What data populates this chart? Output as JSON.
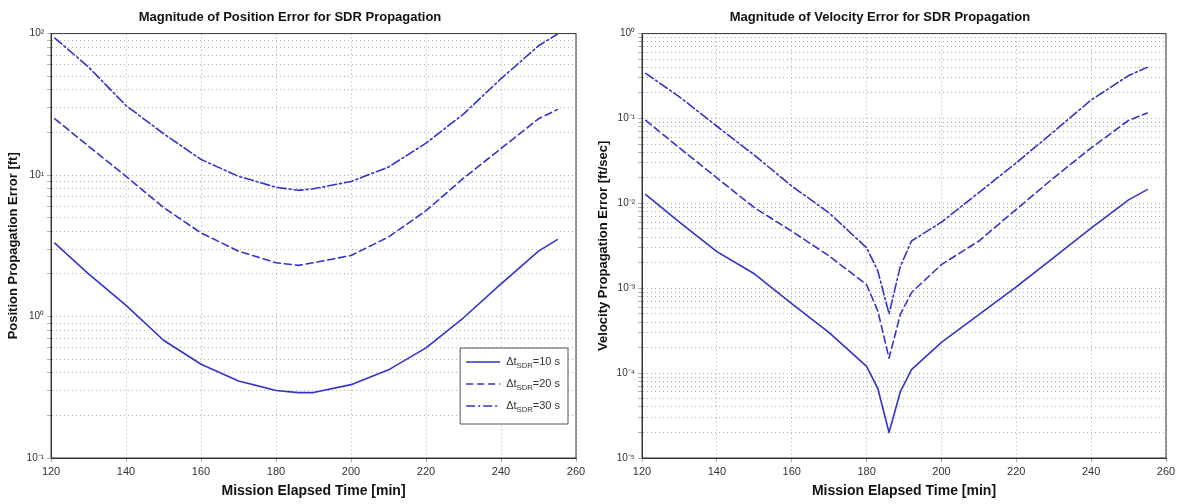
{
  "chart_data": [
    {
      "type": "line",
      "title": "Magnitude of Position Error for SDR Propagation",
      "xlabel": "Mission Elapsed Time [min]",
      "ylabel": "Position Propagation Error [ft]",
      "x": [
        121,
        130,
        140,
        150,
        160,
        170,
        180,
        186,
        190,
        200,
        210,
        220,
        230,
        240,
        250,
        255
      ],
      "series": [
        {
          "name": "Δt$_{SDR}$=10 s",
          "color": "#3333cc",
          "line_style": "solid",
          "values": [
            3.3,
            2.0,
            1.2,
            0.68,
            0.46,
            0.35,
            0.3,
            0.29,
            0.29,
            0.33,
            0.42,
            0.6,
            0.98,
            1.7,
            2.9,
            3.5
          ]
        },
        {
          "name": "Δt$_{SDR}$=20 s",
          "color": "#3333cc",
          "line_style": "dashed",
          "values": [
            25,
            16,
            9.8,
            5.9,
            3.9,
            2.9,
            2.4,
            2.3,
            2.4,
            2.7,
            3.65,
            5.6,
            9.5,
            15.4,
            25,
            29
          ]
        },
        {
          "name": "Δt$_{SDR}$=30 s",
          "color": "#3333cc",
          "line_style": "dashdot",
          "values": [
            93,
            58,
            31,
            19.6,
            12.9,
            9.8,
            8.2,
            7.8,
            8.0,
            9.0,
            11.4,
            16.8,
            27,
            48,
            82,
            99
          ]
        }
      ],
      "log": "y",
      "xlim": [
        120,
        260
      ],
      "xticks": [
        120,
        140,
        160,
        180,
        200,
        220,
        240,
        260
      ],
      "ylim": [
        0.1,
        100
      ],
      "yticks": [
        {
          "value": 0.1,
          "label": "10⁻¹"
        },
        {
          "value": 0.2,
          "label": null
        },
        {
          "value": 0.3,
          "label": null
        },
        {
          "value": 0.4,
          "label": null
        },
        {
          "value": 0.5,
          "label": null
        },
        {
          "value": 0.6,
          "label": null
        },
        {
          "value": 0.7,
          "label": null
        },
        {
          "value": 0.8,
          "label": null
        },
        {
          "value": 0.9,
          "label": null
        },
        {
          "value": 1,
          "label": "10⁰"
        },
        {
          "value": 2,
          "label": null
        },
        {
          "value": 3,
          "label": null
        },
        {
          "value": 4,
          "label": null
        },
        {
          "value": 5,
          "label": null
        },
        {
          "value": 6,
          "label": null
        },
        {
          "value": 7,
          "label": null
        },
        {
          "value": 8,
          "label": null
        },
        {
          "value": 9,
          "label": null
        },
        {
          "value": 10,
          "label": "10¹"
        },
        {
          "value": 20,
          "label": null
        },
        {
          "value": 30,
          "label": null
        },
        {
          "value": 40,
          "label": null
        },
        {
          "value": 50,
          "label": null
        },
        {
          "value": 60,
          "label": null
        },
        {
          "value": 70,
          "label": null
        },
        {
          "value": 80,
          "label": null
        },
        {
          "value": 90,
          "label": null
        },
        {
          "value": 100,
          "label": "10²"
        }
      ],
      "grid": true,
      "legend": "bottom right",
      "marker": "none"
    },
    {
      "type": "line",
      "title": "Magnitude of Velocity Error for SDR Propagation",
      "xlabel": "Mission Elapsed Time [min]",
      "ylabel": "Velocity Propagation Error [ft/sec]",
      "x": [
        121,
        130,
        140,
        150,
        160,
        170,
        180,
        183,
        186,
        189,
        192,
        200,
        210,
        220,
        230,
        240,
        250,
        255
      ],
      "series": [
        {
          "color": "#3333cc",
          "line_style": "solid",
          "values": [
            0.0127,
            0.006,
            0.0027,
            0.00148,
            0.00066,
            0.0003,
            0.00012,
            6.6e-05,
            2e-05,
            6e-05,
            0.00011,
            0.00023,
            0.00049,
            0.00104,
            0.0023,
            0.0051,
            0.011,
            0.0145
          ]
        },
        {
          "color": "#3333cc",
          "line_style": "dashed",
          "values": [
            0.095,
            0.045,
            0.02,
            0.0089,
            0.0047,
            0.0024,
            0.0011,
            0.00054,
            0.00015,
            0.00049,
            0.00089,
            0.0019,
            0.0036,
            0.0085,
            0.02,
            0.045,
            0.095,
            0.116
          ]
        },
        {
          "color": "#3333cc",
          "line_style": "dashdot",
          "values": [
            0.34,
            0.18,
            0.081,
            0.037,
            0.016,
            0.0077,
            0.003,
            0.0016,
            0.0005,
            0.0018,
            0.0036,
            0.006,
            0.0134,
            0.03,
            0.07,
            0.165,
            0.32,
            0.4
          ]
        }
      ],
      "log": "y",
      "xlim": [
        120,
        260
      ],
      "xticks": [
        120,
        140,
        160,
        180,
        200,
        220,
        240,
        260
      ],
      "ylim": [
        1e-05,
        1
      ],
      "yticks": [
        {
          "value": 1e-05,
          "label": "10⁻⁵"
        },
        {
          "value": 2e-05,
          "label": null
        },
        {
          "value": 3e-05,
          "label": null
        },
        {
          "value": 4e-05,
          "label": null
        },
        {
          "value": 5e-05,
          "label": null
        },
        {
          "value": 6e-05,
          "label": null
        },
        {
          "value": 7e-05,
          "label": null
        },
        {
          "value": 8e-05,
          "label": null
        },
        {
          "value": 9e-05,
          "label": null
        },
        {
          "value": 0.0001,
          "label": "10⁻⁴"
        },
        {
          "value": 0.0002,
          "label": null
        },
        {
          "value": 0.0003,
          "label": null
        },
        {
          "value": 0.0004,
          "label": null
        },
        {
          "value": 0.0005,
          "label": null
        },
        {
          "value": 0.0006,
          "label": null
        },
        {
          "value": 0.0007,
          "label": null
        },
        {
          "value": 0.0008,
          "label": null
        },
        {
          "value": 0.0009,
          "label": null
        },
        {
          "value": 0.001,
          "label": "10⁻³"
        },
        {
          "value": 0.002,
          "label": null
        },
        {
          "value": 0.003,
          "label": null
        },
        {
          "value": 0.004,
          "label": null
        },
        {
          "value": 0.005,
          "label": null
        },
        {
          "value": 0.006,
          "label": null
        },
        {
          "value": 0.007,
          "label": null
        },
        {
          "value": 0.008,
          "label": null
        },
        {
          "value": 0.009,
          "label": null
        },
        {
          "value": 0.01,
          "label": "10⁻²"
        },
        {
          "value": 0.02,
          "label": null
        },
        {
          "value": 0.03,
          "label": null
        },
        {
          "value": 0.04,
          "label": null
        },
        {
          "value": 0.05,
          "label": null
        },
        {
          "value": 0.06,
          "label": null
        },
        {
          "value": 0.07,
          "label": null
        },
        {
          "value": 0.08,
          "label": null
        },
        {
          "value": 0.09,
          "label": null
        },
        {
          "value": 0.1,
          "label": "10⁻¹"
        },
        {
          "value": 0.2,
          "label": null
        },
        {
          "value": 0.3,
          "label": null
        },
        {
          "value": 0.4,
          "label": null
        },
        {
          "value": 0.5,
          "label": null
        },
        {
          "value": 0.6,
          "label": null
        },
        {
          "value": 0.7,
          "label": null
        },
        {
          "value": 0.8,
          "label": null
        },
        {
          "value": 0.9,
          "label": null
        },
        {
          "value": 1,
          "label": "10⁰"
        }
      ],
      "grid": true,
      "marker": "none"
    }
  ]
}
